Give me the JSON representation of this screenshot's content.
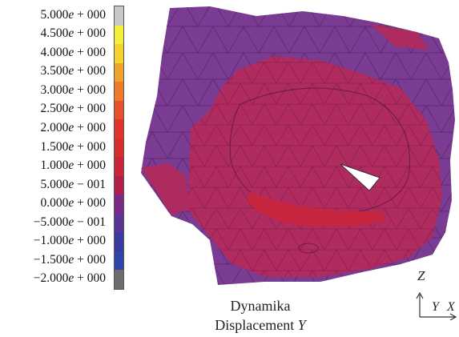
{
  "legend": {
    "labels": [
      "5.000e + 000",
      "4.500e + 000",
      "4.000e + 000",
      "3.500e + 000",
      "3.000e + 000",
      "2.500e + 000",
      "2.000e + 000",
      "1.500e + 000",
      "1.000e + 000",
      "5.000e − 001",
      "0.000e + 000",
      "−5.000e − 001",
      "−1.000e + 000",
      "−1.500e + 000",
      "−2.000e + 000"
    ],
    "colors": [
      "#c8c8c8",
      "#f5ef3a",
      "#f5d22e",
      "#f0a22a",
      "#ef7a27",
      "#e8522a",
      "#e23427",
      "#d62d2d",
      "#cc2438",
      "#b41e4a",
      "#7a2a86",
      "#5a3596",
      "#3b3aa0",
      "#2f45a8",
      "#6d6d6d"
    ]
  },
  "caption": {
    "line1": "Dynamika",
    "line2": "Displacement Y"
  },
  "axes": {
    "z": "Z",
    "y": "Y",
    "x": "X"
  },
  "mesh_colors": {
    "outer": "#7a3b92",
    "inner": "#b42a5a",
    "band": "#c72640",
    "edge": "#3a1040"
  }
}
